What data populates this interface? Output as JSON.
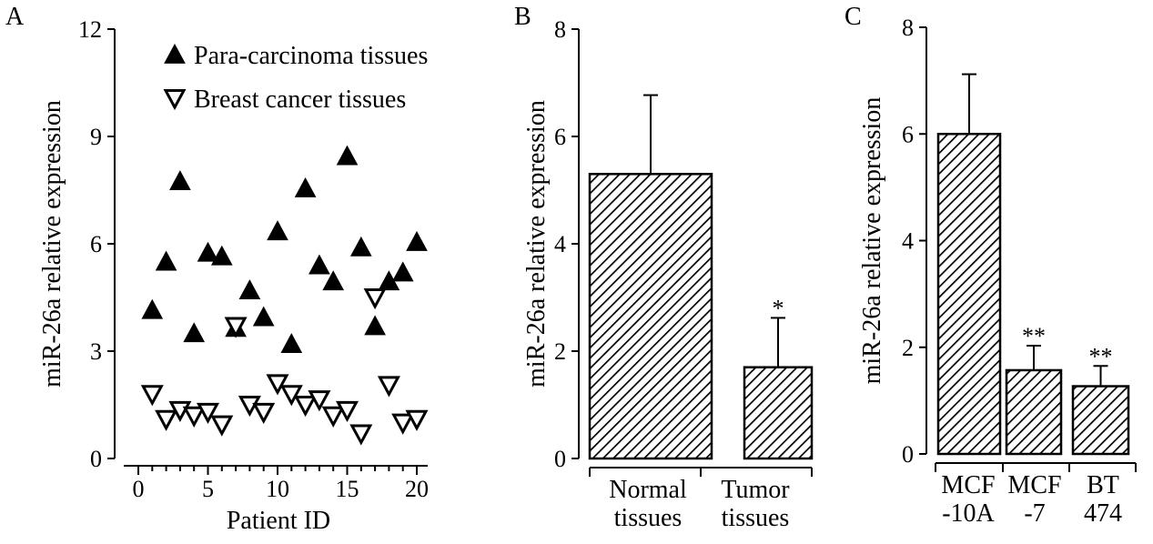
{
  "chart_data": [
    {
      "panel": "A",
      "type": "scatter",
      "xlabel": "Patient ID",
      "ylabel": "miR-26a relative expression",
      "xlim": [
        -1,
        21
      ],
      "ylim": [
        0,
        12
      ],
      "xticks": [
        0,
        5,
        10,
        15,
        20
      ],
      "yticks": [
        0,
        3,
        6,
        9,
        12
      ],
      "legend_position": "top-right",
      "series": [
        {
          "name": "Para-carcinoma tissues",
          "marker": "filled-triangle-up",
          "x": [
            1,
            2,
            3,
            4,
            5,
            6,
            7,
            8,
            9,
            10,
            11,
            12,
            13,
            14,
            15,
            16,
            17,
            18,
            19,
            20
          ],
          "y": [
            4.15,
            5.5,
            7.75,
            3.5,
            5.75,
            5.65,
            3.65,
            4.7,
            3.95,
            6.35,
            3.2,
            7.55,
            5.4,
            4.95,
            8.45,
            5.9,
            3.7,
            4.95,
            5.2,
            6.05
          ]
        },
        {
          "name": "Breast cancer tissues",
          "marker": "open-triangle-down",
          "x": [
            1,
            2,
            3,
            4,
            5,
            6,
            7,
            8,
            9,
            10,
            11,
            12,
            13,
            14,
            15,
            16,
            17,
            18,
            19,
            20
          ],
          "y": [
            1.8,
            1.1,
            1.35,
            1.2,
            1.3,
            0.95,
            3.7,
            1.5,
            1.3,
            2.1,
            1.8,
            1.5,
            1.65,
            1.2,
            1.35,
            0.7,
            4.5,
            2.05,
            1.0,
            1.1
          ]
        }
      ]
    },
    {
      "panel": "B",
      "type": "bar",
      "ylabel": "miR-26a relative expression",
      "ylim": [
        0,
        8
      ],
      "yticks": [
        0,
        2,
        4,
        6,
        8
      ],
      "categories": [
        [
          "Normal",
          "tissues"
        ],
        [
          "Tumor",
          "tissues"
        ]
      ],
      "values": [
        5.3,
        1.7
      ],
      "errors": [
        1.47,
        0.92
      ],
      "significance": [
        "",
        "*"
      ]
    },
    {
      "panel": "C",
      "type": "bar",
      "ylabel": "miR-26a relative expression",
      "ylim": [
        0,
        8
      ],
      "yticks": [
        0,
        2,
        4,
        6,
        8
      ],
      "categories": [
        [
          "MCF",
          "-10A"
        ],
        [
          "MCF",
          "-7"
        ],
        [
          "BT",
          "474"
        ]
      ],
      "values": [
        6.0,
        1.57,
        1.27
      ],
      "errors": [
        1.12,
        0.46,
        0.38
      ],
      "significance": [
        "",
        "**",
        "**"
      ]
    }
  ]
}
